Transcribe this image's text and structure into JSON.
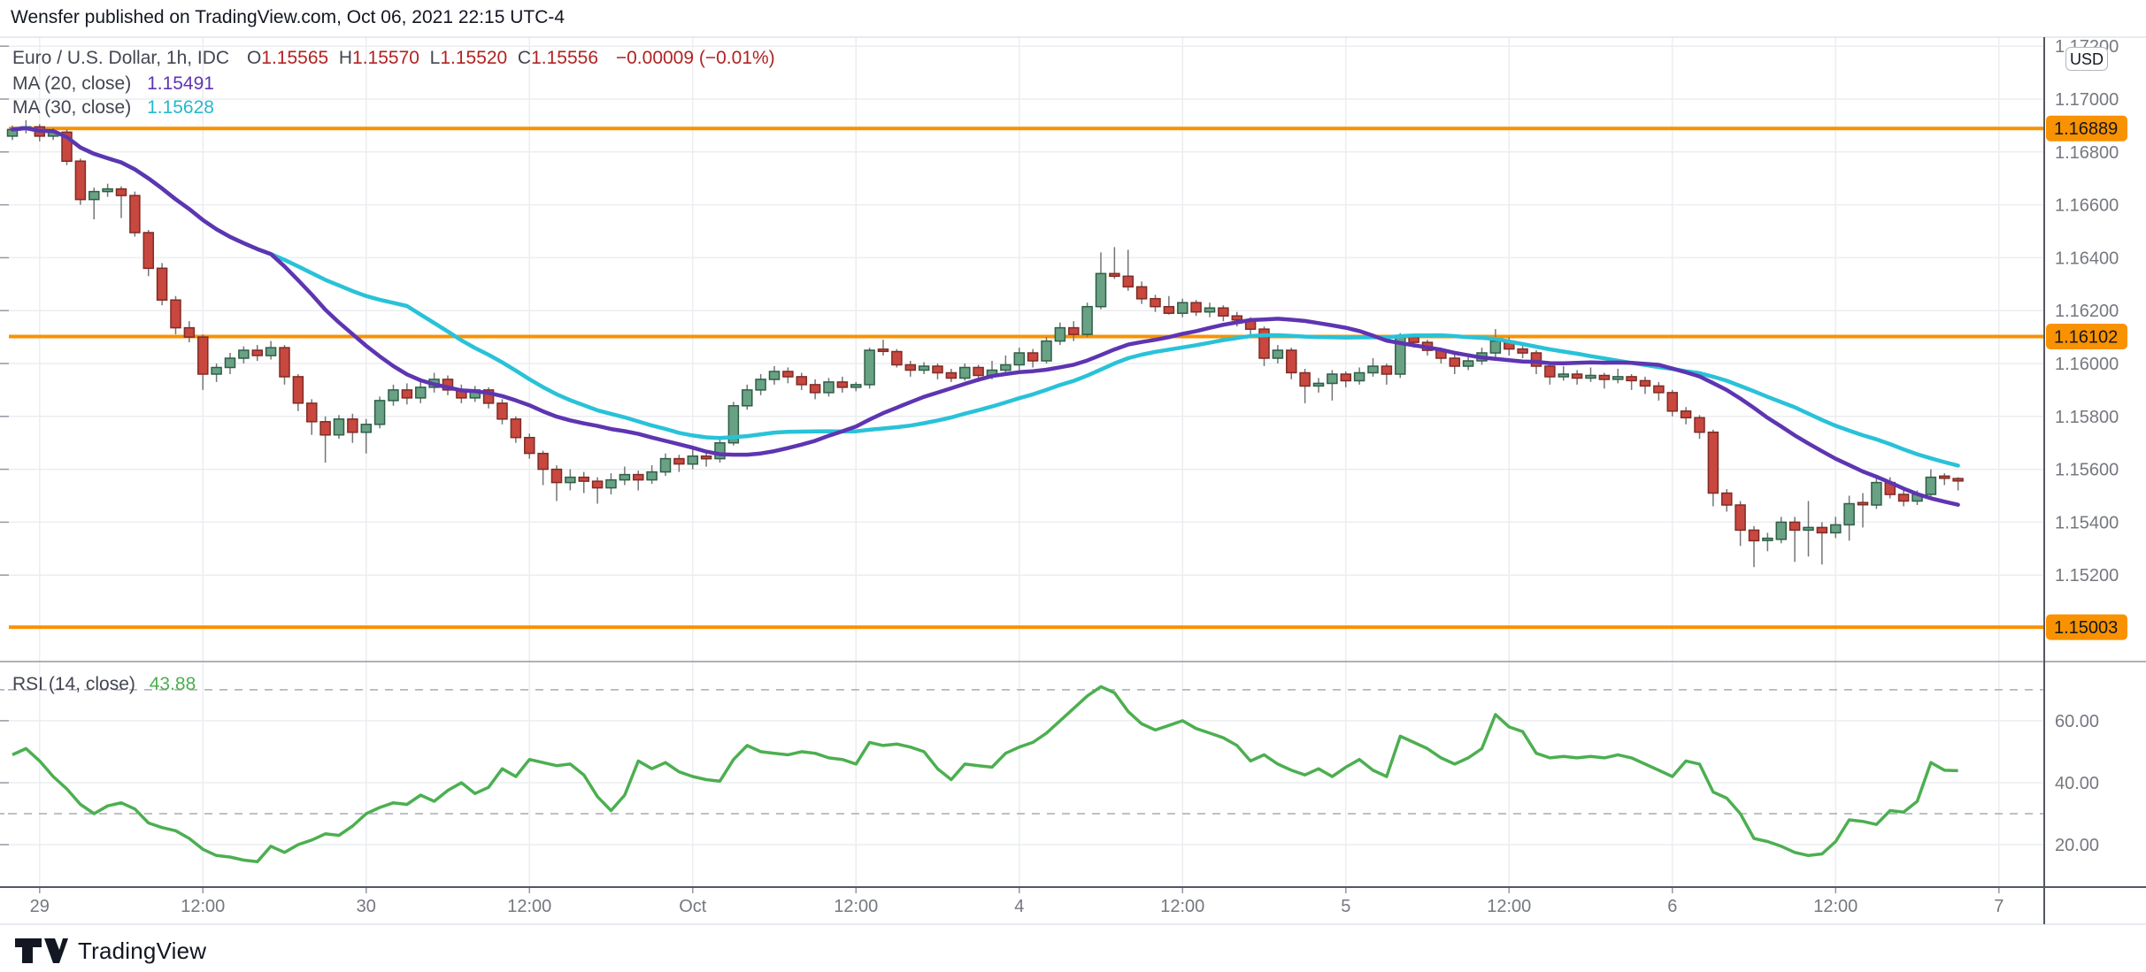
{
  "header": {
    "published_line": "Wensfer published on TradingView.com, Oct 06, 2021 22:15 UTC-4"
  },
  "legend": {
    "symbol_title": "Euro / U.S. Dollar, 1h, IDC",
    "ohlc": [
      {
        "k": "O",
        "v": "1.15565"
      },
      {
        "k": "H",
        "v": "1.15570"
      },
      {
        "k": "L",
        "v": "1.15520"
      },
      {
        "k": "C",
        "v": "1.15556"
      }
    ],
    "change": "−0.00009 (−0.01%)",
    "ma20": {
      "label": "MA (20, close)",
      "value": "1.15491"
    },
    "ma30": {
      "label": "MA (30, close)",
      "value": "1.15628"
    },
    "rsi": {
      "label": "RSI (14, close)",
      "value": "43.88"
    }
  },
  "axis": {
    "currency_button": "USD",
    "price_ticks": [
      {
        "label": "1.17200",
        "price": 1.172
      },
      {
        "label": "1.17000",
        "price": 1.17
      },
      {
        "label": "1.16800",
        "price": 1.168
      },
      {
        "label": "1.16600",
        "price": 1.166
      },
      {
        "label": "1.16400",
        "price": 1.164
      },
      {
        "label": "1.16200",
        "price": 1.162
      },
      {
        "label": "1.16000",
        "price": 1.16
      },
      {
        "label": "1.15800",
        "price": 1.158
      },
      {
        "label": "1.15600",
        "price": 1.156
      },
      {
        "label": "1.15400",
        "price": 1.154
      },
      {
        "label": "1.15200",
        "price": 1.152
      }
    ],
    "price_badges": [
      {
        "label": "1.16889",
        "price": 1.16889
      },
      {
        "label": "1.16102",
        "price": 1.16102
      },
      {
        "label": "1.15003",
        "price": 1.15003
      }
    ],
    "rsi_ticks": [
      {
        "label": "60.00",
        "value": 60
      },
      {
        "label": "40.00",
        "value": 40
      },
      {
        "label": "20.00",
        "value": 20
      }
    ],
    "time_ticks": [
      {
        "label": "29",
        "slot": 2
      },
      {
        "label": "12:00",
        "slot": 14
      },
      {
        "label": "30",
        "slot": 26
      },
      {
        "label": "12:00",
        "slot": 38
      },
      {
        "label": "Oct",
        "slot": 50
      },
      {
        "label": "12:00",
        "slot": 62
      },
      {
        "label": "4",
        "slot": 74
      },
      {
        "label": "12:00",
        "slot": 86
      },
      {
        "label": "5",
        "slot": 98
      },
      {
        "label": "12:00",
        "slot": 110
      },
      {
        "label": "6",
        "slot": 122
      },
      {
        "label": "12:00",
        "slot": 134
      },
      {
        "label": "7",
        "slot": 146
      }
    ]
  },
  "chart_data": {
    "type": "candlestick",
    "title": "Euro / U.S. Dollar, 1h, IDC",
    "interval": "1h",
    "price_axis_range": {
      "min": 1.14873,
      "max": 1.17234
    },
    "rsi_axis_range": {
      "min": 6.3,
      "max": 79.1
    },
    "horizontal_levels": [
      1.16889,
      1.16102,
      1.15003
    ],
    "last_candle": {
      "open": 1.15565,
      "high": 1.1557,
      "low": 1.1552,
      "close": 1.15556,
      "change": -9e-05,
      "change_pct": -0.01
    },
    "overlays": [
      {
        "name": "MA (20, close)",
        "period": 20,
        "last_value": 1.15491
      },
      {
        "name": "MA (30, close)",
        "period": 30,
        "last_value": 1.15628
      }
    ],
    "candles": [
      [
        1.1686,
        1.169,
        1.16845,
        1.16885
      ],
      [
        1.16885,
        1.1692,
        1.1687,
        1.16895
      ],
      [
        1.16895,
        1.16905,
        1.1684,
        1.1686
      ],
      [
        1.1686,
        1.1689,
        1.16845,
        1.16875
      ],
      [
        1.16875,
        1.16885,
        1.1675,
        1.16765
      ],
      [
        1.16765,
        1.16775,
        1.166,
        1.1662
      ],
      [
        1.1662,
        1.16665,
        1.16545,
        1.1665
      ],
      [
        1.1665,
        1.1668,
        1.1663,
        1.1666
      ],
      [
        1.1666,
        1.1667,
        1.1655,
        1.16635
      ],
      [
        1.16635,
        1.1665,
        1.1648,
        1.16495
      ],
      [
        1.16495,
        1.16505,
        1.1633,
        1.1636
      ],
      [
        1.1636,
        1.1638,
        1.1622,
        1.1624
      ],
      [
        1.1624,
        1.16255,
        1.1611,
        1.16135
      ],
      [
        1.16135,
        1.1616,
        1.1608,
        1.161
      ],
      [
        1.161,
        1.1611,
        1.159,
        1.1596
      ],
      [
        1.1596,
        1.16,
        1.1593,
        1.15985
      ],
      [
        1.15985,
        1.1604,
        1.1596,
        1.1602
      ],
      [
        1.1602,
        1.16065,
        1.16,
        1.1605
      ],
      [
        1.1605,
        1.1607,
        1.1601,
        1.1603
      ],
      [
        1.1603,
        1.16085,
        1.16015,
        1.1606
      ],
      [
        1.1606,
        1.1607,
        1.1592,
        1.1595
      ],
      [
        1.1595,
        1.1596,
        1.1582,
        1.1585
      ],
      [
        1.1585,
        1.15865,
        1.1573,
        1.1578
      ],
      [
        1.1578,
        1.158,
        1.15625,
        1.1573
      ],
      [
        1.1573,
        1.15805,
        1.15715,
        1.1579
      ],
      [
        1.1579,
        1.1581,
        1.157,
        1.1574
      ],
      [
        1.1574,
        1.1579,
        1.1566,
        1.1577
      ],
      [
        1.1577,
        1.15875,
        1.15755,
        1.1586
      ],
      [
        1.1586,
        1.1592,
        1.1584,
        1.159
      ],
      [
        1.159,
        1.15925,
        1.15845,
        1.1587
      ],
      [
        1.1587,
        1.1593,
        1.1585,
        1.1591
      ],
      [
        1.1591,
        1.15965,
        1.1589,
        1.1594
      ],
      [
        1.1594,
        1.15955,
        1.1588,
        1.159
      ],
      [
        1.159,
        1.1592,
        1.1585,
        1.1587
      ],
      [
        1.1587,
        1.15915,
        1.15855,
        1.159
      ],
      [
        1.159,
        1.1591,
        1.1583,
        1.1585
      ],
      [
        1.1585,
        1.15865,
        1.1577,
        1.1579
      ],
      [
        1.1579,
        1.158,
        1.157,
        1.1572
      ],
      [
        1.1572,
        1.15735,
        1.1564,
        1.1566
      ],
      [
        1.1566,
        1.1567,
        1.1554,
        1.156
      ],
      [
        1.156,
        1.15615,
        1.1548,
        1.1555
      ],
      [
        1.1555,
        1.156,
        1.1552,
        1.1557
      ],
      [
        1.1557,
        1.1559,
        1.1551,
        1.15555
      ],
      [
        1.15555,
        1.1557,
        1.1547,
        1.1553
      ],
      [
        1.1553,
        1.15585,
        1.15505,
        1.1556
      ],
      [
        1.1556,
        1.1561,
        1.1554,
        1.1558
      ],
      [
        1.1558,
        1.15595,
        1.1552,
        1.1556
      ],
      [
        1.1556,
        1.15615,
        1.15545,
        1.1559
      ],
      [
        1.1559,
        1.1566,
        1.15575,
        1.1564
      ],
      [
        1.1564,
        1.15655,
        1.1559,
        1.1562
      ],
      [
        1.1562,
        1.15675,
        1.156,
        1.1565
      ],
      [
        1.1565,
        1.1567,
        1.1561,
        1.1564
      ],
      [
        1.1564,
        1.1572,
        1.15625,
        1.157
      ],
      [
        1.157,
        1.15855,
        1.1569,
        1.1584
      ],
      [
        1.1584,
        1.1592,
        1.15825,
        1.159
      ],
      [
        1.159,
        1.1596,
        1.1588,
        1.1594
      ],
      [
        1.1594,
        1.1599,
        1.1592,
        1.1597
      ],
      [
        1.1597,
        1.15985,
        1.15925,
        1.1595
      ],
      [
        1.1595,
        1.15965,
        1.159,
        1.1592
      ],
      [
        1.1592,
        1.1594,
        1.15865,
        1.1589
      ],
      [
        1.1589,
        1.15945,
        1.15875,
        1.1593
      ],
      [
        1.1593,
        1.1595,
        1.1589,
        1.1591
      ],
      [
        1.1591,
        1.1593,
        1.15895,
        1.1592
      ],
      [
        1.1592,
        1.1606,
        1.15905,
        1.1605
      ],
      [
        1.1605,
        1.1609,
        1.1603,
        1.16045
      ],
      [
        1.16045,
        1.16055,
        1.15985,
        1.15995
      ],
      [
        1.15995,
        1.1601,
        1.1595,
        1.15975
      ],
      [
        1.15975,
        1.16005,
        1.1596,
        1.1599
      ],
      [
        1.1599,
        1.16,
        1.1594,
        1.15965
      ],
      [
        1.15965,
        1.1598,
        1.1593,
        1.15945
      ],
      [
        1.15945,
        1.16,
        1.15935,
        1.15985
      ],
      [
        1.15985,
        1.15995,
        1.1593,
        1.15955
      ],
      [
        1.15955,
        1.1601,
        1.1594,
        1.15975
      ],
      [
        1.15975,
        1.1603,
        1.15955,
        1.15995
      ],
      [
        1.15995,
        1.1606,
        1.15975,
        1.1604
      ],
      [
        1.1604,
        1.16055,
        1.15985,
        1.1601
      ],
      [
        1.1601,
        1.161,
        1.16,
        1.16085
      ],
      [
        1.16085,
        1.16155,
        1.1607,
        1.16135
      ],
      [
        1.16135,
        1.1616,
        1.16085,
        1.1611
      ],
      [
        1.1611,
        1.1623,
        1.161,
        1.16215
      ],
      [
        1.16215,
        1.1642,
        1.16205,
        1.1634
      ],
      [
        1.1634,
        1.1644,
        1.1632,
        1.1633
      ],
      [
        1.1633,
        1.1643,
        1.16275,
        1.1629
      ],
      [
        1.1629,
        1.1631,
        1.16225,
        1.16245
      ],
      [
        1.16245,
        1.1626,
        1.16195,
        1.16215
      ],
      [
        1.16215,
        1.16255,
        1.16185,
        1.1619
      ],
      [
        1.1619,
        1.16245,
        1.16175,
        1.1623
      ],
      [
        1.1623,
        1.1624,
        1.1618,
        1.16195
      ],
      [
        1.16195,
        1.1623,
        1.16175,
        1.1621
      ],
      [
        1.1621,
        1.1622,
        1.1616,
        1.1618
      ],
      [
        1.1618,
        1.16195,
        1.1614,
        1.16165
      ],
      [
        1.16165,
        1.16175,
        1.1611,
        1.1613
      ],
      [
        1.1613,
        1.1614,
        1.1599,
        1.1602
      ],
      [
        1.1602,
        1.1607,
        1.16,
        1.1605
      ],
      [
        1.1605,
        1.1606,
        1.1594,
        1.15965
      ],
      [
        1.15965,
        1.1598,
        1.1585,
        1.15915
      ],
      [
        1.15915,
        1.15945,
        1.1589,
        1.15925
      ],
      [
        1.15925,
        1.15975,
        1.1586,
        1.1596
      ],
      [
        1.1596,
        1.1597,
        1.1591,
        1.15935
      ],
      [
        1.15935,
        1.15985,
        1.1592,
        1.15965
      ],
      [
        1.15965,
        1.1602,
        1.1595,
        1.1599
      ],
      [
        1.1599,
        1.16,
        1.1592,
        1.1596
      ],
      [
        1.1596,
        1.16115,
        1.15945,
        1.161
      ],
      [
        1.161,
        1.1611,
        1.1606,
        1.1608
      ],
      [
        1.1608,
        1.1609,
        1.1603,
        1.1605
      ],
      [
        1.1605,
        1.1606,
        1.16,
        1.1602
      ],
      [
        1.1602,
        1.16035,
        1.1596,
        1.1599
      ],
      [
        1.1599,
        1.1603,
        1.15975,
        1.1601
      ],
      [
        1.1601,
        1.1606,
        1.15995,
        1.1604
      ],
      [
        1.1604,
        1.1613,
        1.16025,
        1.16085
      ],
      [
        1.16085,
        1.161,
        1.1603,
        1.16055
      ],
      [
        1.16055,
        1.1607,
        1.1602,
        1.1604
      ],
      [
        1.1604,
        1.1605,
        1.1596,
        1.1599
      ],
      [
        1.1599,
        1.16,
        1.1592,
        1.1595
      ],
      [
        1.1595,
        1.1599,
        1.15935,
        1.1596
      ],
      [
        1.1596,
        1.15975,
        1.1592,
        1.15945
      ],
      [
        1.15945,
        1.15985,
        1.1593,
        1.15955
      ],
      [
        1.15955,
        1.15965,
        1.15905,
        1.1594
      ],
      [
        1.1594,
        1.1598,
        1.15925,
        1.1595
      ],
      [
        1.1595,
        1.1596,
        1.159,
        1.15935
      ],
      [
        1.15935,
        1.1595,
        1.15885,
        1.15915
      ],
      [
        1.15915,
        1.1593,
        1.1586,
        1.1589
      ],
      [
        1.1589,
        1.159,
        1.158,
        1.1582
      ],
      [
        1.1582,
        1.15835,
        1.1577,
        1.15795
      ],
      [
        1.15795,
        1.15805,
        1.15715,
        1.1574
      ],
      [
        1.1574,
        1.1575,
        1.1546,
        1.1551
      ],
      [
        1.1551,
        1.15525,
        1.1544,
        1.15465
      ],
      [
        1.15465,
        1.1548,
        1.1531,
        1.1537
      ],
      [
        1.1537,
        1.15385,
        1.1523,
        1.1533
      ],
      [
        1.1533,
        1.1536,
        1.1529,
        1.15335
      ],
      [
        1.15335,
        1.1542,
        1.1532,
        1.154
      ],
      [
        1.154,
        1.1542,
        1.1525,
        1.1537
      ],
      [
        1.1537,
        1.1548,
        1.1527,
        1.1538
      ],
      [
        1.1538,
        1.154,
        1.1524,
        1.1536
      ],
      [
        1.1536,
        1.1542,
        1.1534,
        1.1539
      ],
      [
        1.1539,
        1.155,
        1.1533,
        1.1547
      ],
      [
        1.1547,
        1.1551,
        1.1538,
        1.15465
      ],
      [
        1.15465,
        1.15565,
        1.1545,
        1.1555
      ],
      [
        1.1555,
        1.1557,
        1.1549,
        1.15505
      ],
      [
        1.15505,
        1.1553,
        1.1546,
        1.1548
      ],
      [
        1.1548,
        1.1552,
        1.15465,
        1.15505
      ],
      [
        1.15505,
        1.156,
        1.1549,
        1.1557
      ],
      [
        1.1557,
        1.15585,
        1.1554,
        1.15565
      ],
      [
        1.15565,
        1.1557,
        1.1552,
        1.15556
      ]
    ],
    "rsi": {
      "name": "RSI (14, close)",
      "period": 14,
      "last": 43.88,
      "bands": [
        70,
        30
      ],
      "grid": [
        60,
        40,
        20
      ],
      "values": [
        49,
        51,
        47,
        42,
        38,
        33,
        30,
        32.5,
        33.5,
        31.5,
        27,
        25.5,
        24.5,
        22,
        18.5,
        16.5,
        16,
        15,
        14.5,
        19.5,
        17.5,
        20,
        21.5,
        23.5,
        23,
        26,
        30,
        32,
        33.5,
        33,
        36,
        34,
        37.5,
        40,
        36.5,
        38.5,
        44.5,
        42,
        47.5,
        46.5,
        45.5,
        46,
        42.5,
        35.5,
        31,
        36,
        47,
        44.5,
        46.5,
        43.5,
        42,
        41,
        40.5,
        47.5,
        52,
        50,
        49.5,
        49,
        50,
        49.5,
        48,
        47.5,
        46,
        53,
        52,
        52.5,
        51.5,
        50,
        44.5,
        41,
        46,
        45.5,
        45,
        49.5,
        51.5,
        53,
        56,
        60,
        64,
        68,
        71,
        69,
        63,
        59,
        57,
        58.5,
        60,
        57.5,
        56,
        54.5,
        52,
        47,
        49,
        46,
        44,
        42.5,
        44.5,
        42,
        45,
        47.5,
        44,
        42,
        55,
        53,
        51,
        48,
        46,
        48,
        51,
        62,
        58,
        56.5,
        49.5,
        48,
        48.5,
        48,
        48.5,
        48,
        49,
        48,
        46,
        44,
        42,
        47,
        46,
        37,
        35,
        30,
        22,
        21,
        19.5,
        17.5,
        16.5,
        17,
        21,
        28,
        27.5,
        26.5,
        31,
        30.5,
        34,
        46.5,
        44,
        43.88
      ]
    }
  },
  "colors": {
    "up": "#68A184",
    "up_border": "#2E5E46",
    "down": "#C8473E",
    "down_border": "#7E2C26",
    "wick": "#757575",
    "ma20": "#5E35B1",
    "ma30": "#29C2D8",
    "level": "#F89200",
    "rsi": "#4CAF50",
    "grid": "#ECEDF1",
    "band_dash": "#A8ABB3",
    "axis_text": "#75787F",
    "divider": "#9598A1",
    "border_dark": "#555861",
    "border_light": "#E0E3EB",
    "text_dark": "#131722"
  },
  "footer": {
    "brand": "TradingView"
  }
}
